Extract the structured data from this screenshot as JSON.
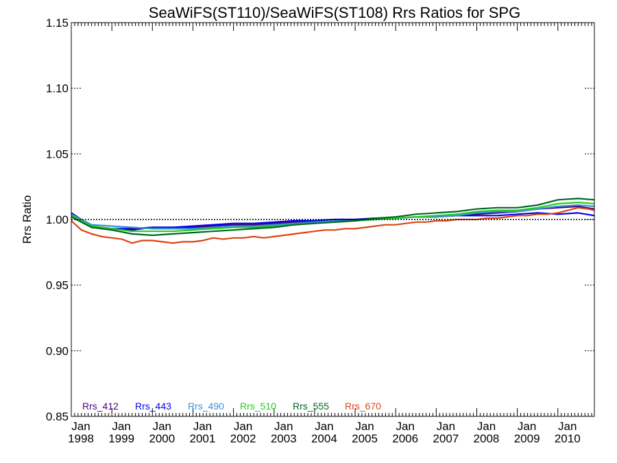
{
  "chart_data": {
    "type": "line",
    "title": "SeaWiFS(ST110)/SeaWiFS(ST108)  Rrs Ratios for SPG",
    "xlabel": "",
    "ylabel": "Rrs Ratio",
    "xlim": [
      1998.0,
      2010.9
    ],
    "ylim": [
      0.85,
      1.15
    ],
    "yticks": [
      0.85,
      0.9,
      0.95,
      1.0,
      1.05,
      1.1,
      1.15
    ],
    "ytick_labels": [
      "0.85",
      "0.90",
      "0.95",
      "1.00",
      "1.05",
      "1.10",
      "1.15"
    ],
    "xtick_labels": [
      {
        "month": "Jan",
        "year": "1998"
      },
      {
        "month": "Jan",
        "year": "1999"
      },
      {
        "month": "Jan",
        "year": "2000"
      },
      {
        "month": "Jan",
        "year": "2001"
      },
      {
        "month": "Jan",
        "year": "2002"
      },
      {
        "month": "Jan",
        "year": "2003"
      },
      {
        "month": "Jan",
        "year": "2004"
      },
      {
        "month": "Jan",
        "year": "2005"
      },
      {
        "month": "Jan",
        "year": "2006"
      },
      {
        "month": "Jan",
        "year": "2007"
      },
      {
        "month": "Jan",
        "year": "2008"
      },
      {
        "month": "Jan",
        "year": "2009"
      },
      {
        "month": "Jan",
        "year": "2010"
      }
    ],
    "reference_line": 1.0,
    "grid": false,
    "legend_position": "bottom-left",
    "series": [
      {
        "name": "Rrs_412",
        "color": "#4b0082",
        "x": [
          1998.0,
          1998.5,
          1999.0,
          1999.5,
          2000.0,
          2000.5,
          2001.0,
          2001.5,
          2002.0,
          2002.5,
          2003.0,
          2003.5,
          2004.0,
          2004.5,
          2005.0,
          2005.5,
          2006.0,
          2006.5,
          2007.0,
          2007.5,
          2008.0,
          2008.5,
          2009.0,
          2009.5,
          2010.0,
          2010.5,
          2010.9
        ],
        "y": [
          1.005,
          0.995,
          0.993,
          0.992,
          0.994,
          0.994,
          0.994,
          0.995,
          0.996,
          0.996,
          0.997,
          0.998,
          0.999,
          1.0,
          1.0,
          1.001,
          1.001,
          1.002,
          1.002,
          1.003,
          1.004,
          1.005,
          1.006,
          1.008,
          1.009,
          1.01,
          1.008
        ]
      },
      {
        "name": "Rrs_443",
        "color": "#0000ee",
        "x": [
          1998.0,
          1998.5,
          1999.0,
          1999.5,
          2000.0,
          2000.5,
          2001.0,
          2001.5,
          2002.0,
          2002.5,
          2003.0,
          2003.5,
          2004.0,
          2004.5,
          2005.0,
          2005.5,
          2006.0,
          2006.5,
          2007.0,
          2007.5,
          2008.0,
          2008.5,
          2009.0,
          2009.5,
          2010.0,
          2010.5,
          2010.9
        ],
        "y": [
          1.005,
          0.994,
          0.993,
          0.993,
          0.994,
          0.994,
          0.995,
          0.996,
          0.997,
          0.997,
          0.998,
          0.999,
          0.999,
          1.0,
          1.0,
          1.001,
          1.001,
          1.002,
          1.002,
          1.003,
          1.003,
          1.003,
          1.004,
          1.005,
          1.004,
          1.005,
          1.003
        ]
      },
      {
        "name": "Rrs_490",
        "color": "#3a8fd6",
        "x": [
          1998.0,
          1998.5,
          1999.0,
          1999.5,
          2000.0,
          2000.5,
          2001.0,
          2001.5,
          2002.0,
          2002.5,
          2003.0,
          2003.5,
          2004.0,
          2004.5,
          2005.0,
          2005.5,
          2006.0,
          2006.5,
          2007.0,
          2007.5,
          2008.0,
          2008.5,
          2009.0,
          2009.5,
          2010.0,
          2010.5,
          2010.9
        ],
        "y": [
          1.004,
          0.996,
          0.995,
          0.994,
          0.993,
          0.993,
          0.993,
          0.994,
          0.995,
          0.995,
          0.996,
          0.997,
          0.998,
          0.999,
          0.999,
          1.0,
          1.001,
          1.002,
          1.002,
          1.003,
          1.005,
          1.006,
          1.006,
          1.008,
          1.01,
          1.011,
          1.01
        ]
      },
      {
        "name": "Rrs_510",
        "color": "#22cc22",
        "x": [
          1998.0,
          1998.5,
          1999.0,
          1999.5,
          2000.0,
          2000.5,
          2001.0,
          2001.5,
          2002.0,
          2002.5,
          2003.0,
          2003.5,
          2004.0,
          2004.5,
          2005.0,
          2005.5,
          2006.0,
          2006.5,
          2007.0,
          2007.5,
          2008.0,
          2008.5,
          2009.0,
          2009.5,
          2010.0,
          2010.5,
          2010.9
        ],
        "y": [
          1.003,
          0.995,
          0.993,
          0.991,
          0.991,
          0.991,
          0.992,
          0.993,
          0.994,
          0.994,
          0.995,
          0.996,
          0.997,
          0.998,
          0.999,
          1.0,
          1.001,
          1.002,
          1.003,
          1.004,
          1.006,
          1.007,
          1.007,
          1.009,
          1.012,
          1.013,
          1.012
        ]
      },
      {
        "name": "Rrs_555",
        "color": "#006622",
        "x": [
          1998.0,
          1998.5,
          1999.0,
          1999.5,
          2000.0,
          2000.5,
          2001.0,
          2001.5,
          2002.0,
          2002.5,
          2003.0,
          2003.5,
          2004.0,
          2004.5,
          2005.0,
          2005.5,
          2006.0,
          2006.5,
          2007.0,
          2007.5,
          2008.0,
          2008.5,
          2009.0,
          2009.5,
          2010.0,
          2010.5,
          2010.9
        ],
        "y": [
          1.002,
          0.994,
          0.992,
          0.989,
          0.988,
          0.989,
          0.99,
          0.991,
          0.992,
          0.993,
          0.994,
          0.996,
          0.997,
          0.998,
          0.999,
          1.001,
          1.002,
          1.004,
          1.005,
          1.006,
          1.008,
          1.009,
          1.009,
          1.011,
          1.015,
          1.016,
          1.015
        ]
      },
      {
        "name": "Rrs_670",
        "color": "#dd4411",
        "x": [
          1998.0,
          1998.25,
          1998.5,
          1998.75,
          1999.0,
          1999.25,
          1999.5,
          1999.75,
          2000.0,
          2000.25,
          2000.5,
          2000.75,
          2001.0,
          2001.25,
          2001.5,
          2001.75,
          2002.0,
          2002.25,
          2002.5,
          2002.75,
          2003.0,
          2003.25,
          2003.5,
          2003.75,
          2004.0,
          2004.25,
          2004.5,
          2004.75,
          2005.0,
          2005.25,
          2005.5,
          2005.75,
          2006.0,
          2006.25,
          2006.5,
          2006.75,
          2007.0,
          2007.25,
          2007.5,
          2007.75,
          2008.0,
          2008.25,
          2008.5,
          2008.75,
          2009.0,
          2009.25,
          2009.5,
          2009.75,
          2010.0,
          2010.25,
          2010.5,
          2010.75,
          2010.9
        ],
        "y": [
          0.999,
          0.992,
          0.989,
          0.987,
          0.986,
          0.985,
          0.982,
          0.984,
          0.984,
          0.983,
          0.982,
          0.983,
          0.983,
          0.984,
          0.986,
          0.985,
          0.986,
          0.986,
          0.987,
          0.986,
          0.987,
          0.988,
          0.989,
          0.99,
          0.991,
          0.992,
          0.992,
          0.993,
          0.993,
          0.994,
          0.995,
          0.996,
          0.996,
          0.997,
          0.998,
          0.998,
          0.999,
          0.999,
          1.0,
          1.0,
          1.0,
          1.001,
          1.001,
          1.002,
          1.003,
          1.003,
          1.004,
          1.004,
          1.005,
          1.007,
          1.009,
          1.008,
          1.007
        ]
      }
    ]
  }
}
